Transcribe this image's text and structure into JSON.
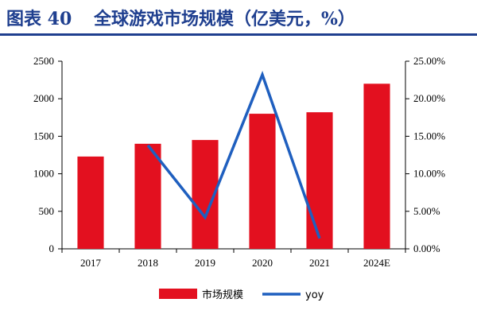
{
  "header": {
    "figure_label": "图表 40",
    "title": "全球游戏市场规模（亿美元，%）"
  },
  "chart_data": {
    "type": "bar",
    "categories": [
      "2017",
      "2018",
      "2019",
      "2020",
      "2021",
      "2024E"
    ],
    "series": [
      {
        "name": "市场规模",
        "type": "bar",
        "axis": "left",
        "color": "#e3101f",
        "values": [
          1230,
          1400,
          1450,
          1800,
          1820,
          2200
        ]
      },
      {
        "name": "yoy",
        "type": "line",
        "axis": "right",
        "color": "#1f5fbf",
        "values": [
          null,
          13.8,
          4.2,
          23.2,
          1.4,
          null
        ]
      }
    ],
    "y_left": {
      "ylim": [
        0,
        2500
      ],
      "ticks": [
        "0",
        "500",
        "1000",
        "1500",
        "2000",
        "2500"
      ]
    },
    "y_right": {
      "ylim": [
        0,
        25
      ],
      "ticks": [
        "0.00%",
        "5.00%",
        "10.00%",
        "15.00%",
        "20.00%",
        "25.00%"
      ]
    },
    "grid": false,
    "legend": "bottom"
  }
}
